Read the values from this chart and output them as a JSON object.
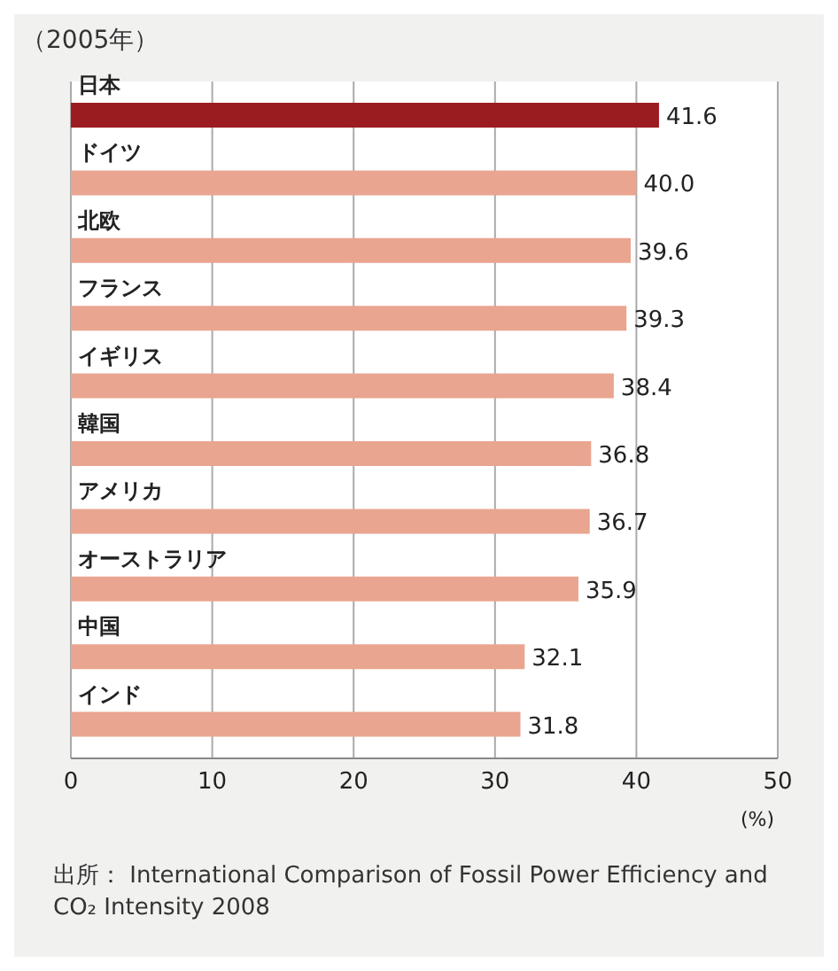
{
  "chart_data": {
    "type": "bar",
    "orientation": "horizontal",
    "title": "（2005年）",
    "xlabel": "(%)",
    "categories": [
      "日本",
      "ドイツ",
      "北欧",
      "フランス",
      "イギリス",
      "韓国",
      "アメリカ",
      "オーストラリア",
      "中国",
      "インド"
    ],
    "values": [
      41.6,
      40.0,
      39.6,
      39.3,
      38.4,
      36.8,
      36.7,
      35.9,
      32.1,
      31.8
    ],
    "colors": [
      "#9b1c20",
      "#e9a58f",
      "#e9a58f",
      "#e9a58f",
      "#e9a58f",
      "#e9a58f",
      "#e9a58f",
      "#e9a58f",
      "#e9a58f",
      "#e9a58f"
    ],
    "value_labels": [
      "41.6",
      "40.0",
      "39.6",
      "39.3",
      "38.4",
      "36.8",
      "36.7",
      "35.9",
      "32.1",
      "31.8"
    ],
    "xlim": [
      0,
      50
    ],
    "xticks": [
      0,
      10,
      20,
      30,
      40,
      50
    ],
    "grid": "x",
    "annotations": [
      "出所： International Comparison of Fossil Power Efficiency and CO₂ Intensity 2008"
    ]
  }
}
